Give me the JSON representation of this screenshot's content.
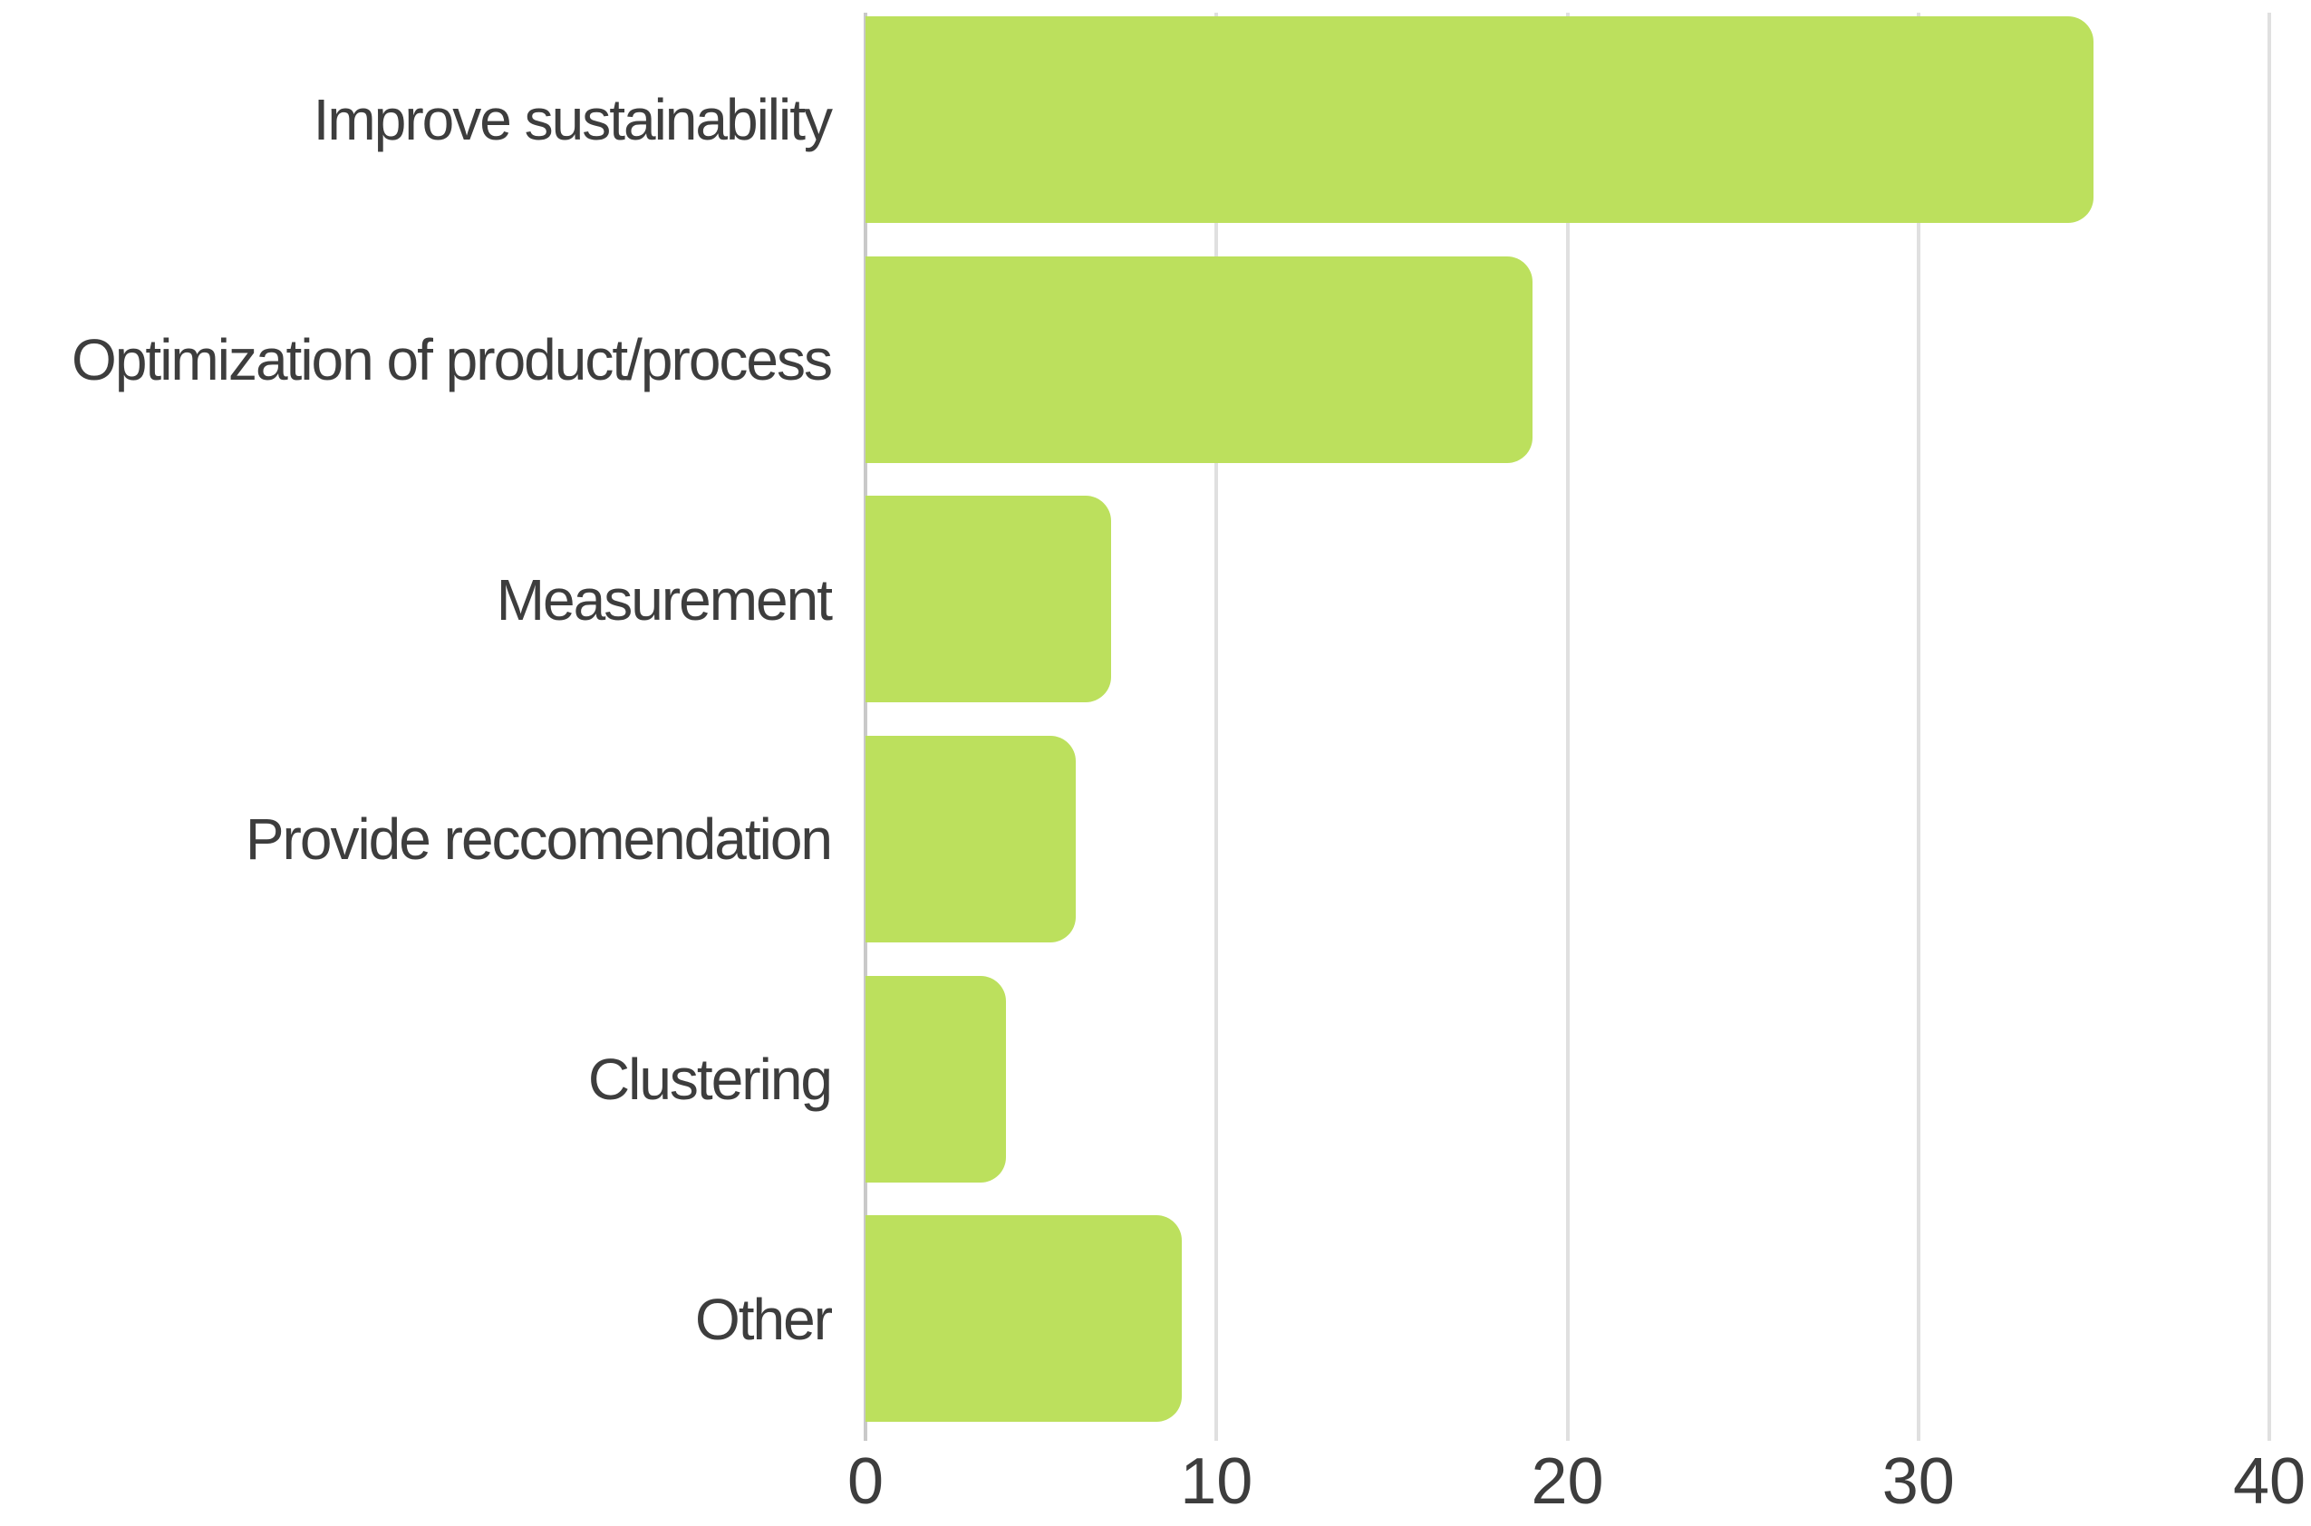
{
  "chart_data": {
    "type": "bar",
    "orientation": "horizontal",
    "title": "",
    "xlabel": "",
    "ylabel": "",
    "categories": [
      "Improve sustainability",
      "Optimization of product/process",
      "Measurement",
      "Provide reccomendation",
      "Clustering",
      "Other"
    ],
    "values": [
      35,
      19,
      7,
      6,
      4,
      9
    ],
    "x_ticks": [
      "0",
      "10",
      "20",
      "30",
      "40"
    ],
    "x_tick_values": [
      0,
      10,
      20,
      30,
      40
    ],
    "xlim": [
      0,
      41.2
    ],
    "grid": true,
    "legend": false,
    "colors": {
      "bar": "#bce05d",
      "gridline": "#e0e0e0",
      "axis_line": "#c9c9c9",
      "text": "#3d3d3d"
    }
  }
}
